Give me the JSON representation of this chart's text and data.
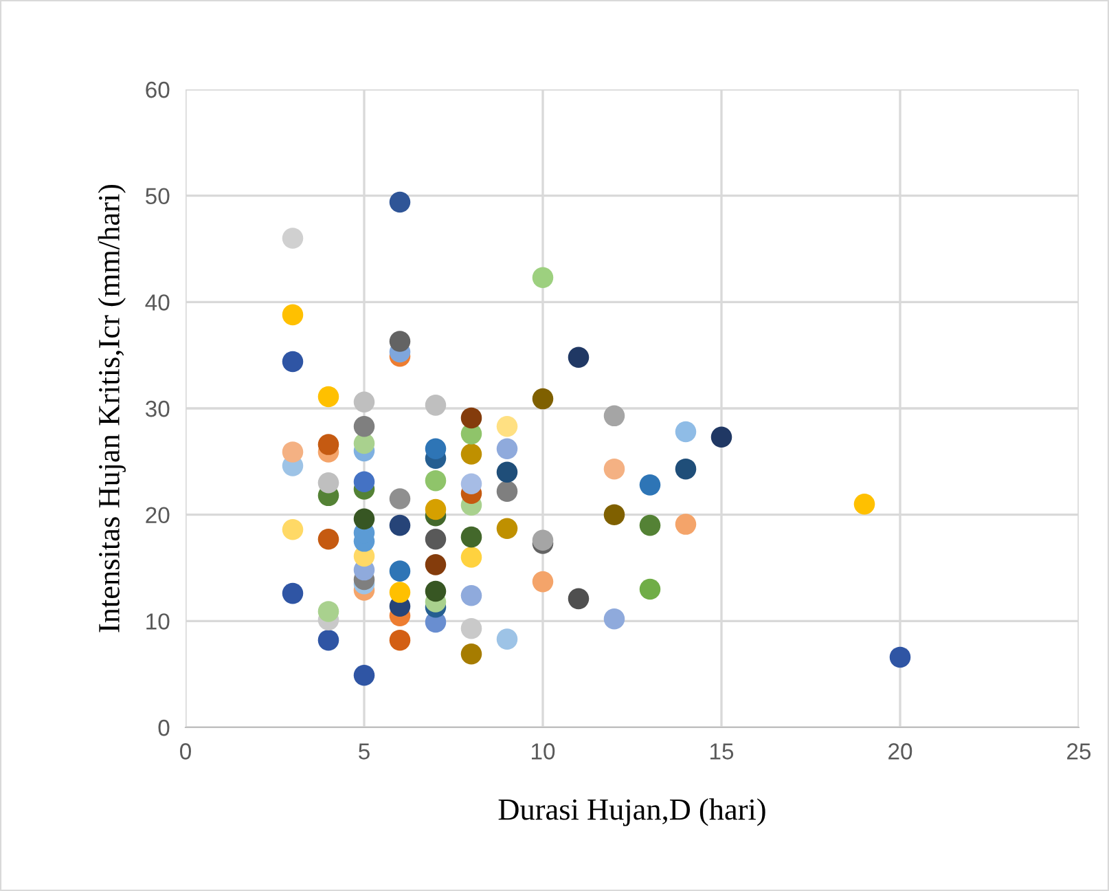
{
  "chart_data": {
    "type": "scatter",
    "xlabel": "Durasi Hujan,D (hari)",
    "ylabel": "Intensitas Hujan Kritis,Icr (mm/hari)",
    "xlim": [
      0,
      25
    ],
    "xticks": [
      0,
      5,
      10,
      15,
      20,
      25
    ],
    "ylim": [
      0,
      60
    ],
    "yticks": [
      0,
      10,
      20,
      30,
      40,
      50,
      60
    ],
    "grid": true,
    "marker": "circle",
    "legend": false,
    "series": [
      {
        "x": [
          3,
          3,
          3,
          3,
          3,
          3,
          3,
          4,
          4,
          4,
          4,
          4,
          4,
          4,
          4,
          4,
          5,
          5,
          5,
          5,
          5,
          5,
          5,
          5,
          5,
          5,
          5,
          5,
          5,
          5,
          5,
          6,
          6,
          6,
          6,
          6,
          6,
          6,
          6,
          6,
          6,
          6,
          7,
          7,
          7,
          7,
          7,
          7,
          7,
          7,
          7,
          7,
          7,
          7,
          8,
          8,
          8,
          8,
          8,
          8,
          8,
          8,
          8,
          8,
          8,
          9,
          9,
          9,
          9,
          9,
          9,
          10,
          10,
          10,
          10,
          10,
          11,
          11,
          12,
          12,
          12,
          12,
          13,
          13,
          13,
          14,
          14,
          14,
          15,
          19,
          20
        ],
        "values": [
          46.0,
          38.8,
          34.4,
          25.9,
          24.6,
          18.6,
          12.6,
          31.1,
          26.6,
          25.9,
          23.0,
          21.8,
          17.7,
          10.9,
          10.1,
          8.2,
          30.6,
          28.3,
          26.7,
          26.0,
          23.1,
          22.4,
          19.6,
          18.3,
          17.5,
          16.1,
          14.8,
          13.9,
          13.5,
          12.9,
          4.9,
          49.4,
          36.3,
          35.3,
          34.9,
          21.5,
          19.0,
          14.7,
          12.7,
          11.4,
          10.5,
          8.2,
          30.3,
          26.2,
          25.3,
          23.2,
          20.5,
          19.9,
          17.7,
          15.3,
          12.8,
          11.8,
          11.3,
          9.9,
          29.1,
          27.6,
          25.7,
          22.9,
          22.0,
          20.9,
          17.9,
          16.0,
          12.4,
          9.3,
          6.9,
          28.3,
          26.2,
          24.0,
          22.2,
          18.7,
          8.3,
          42.3,
          30.9,
          17.6,
          17.3,
          13.7,
          34.8,
          12.1,
          29.3,
          24.3,
          20.0,
          10.2,
          22.8,
          19.0,
          13.0,
          27.8,
          24.3,
          19.1,
          27.3,
          21.0,
          6.6
        ],
        "colors": [
          "#d0d0d0",
          "#ffc000",
          "#2f55a4",
          "#f4b183",
          "#9dc3e6",
          "#ffd966",
          "#2f55a4",
          "#ffc000",
          "#c55a11",
          "#f4a46a",
          "#bfbfbf",
          "#548235",
          "#c55a11",
          "#a9d18e",
          "#c9c9c9",
          "#2f55a4",
          "#bfbfbf",
          "#7f7f7f",
          "#a9d18e",
          "#7fb0e0",
          "#4472c4",
          "#548235",
          "#375623",
          "#5b9bd5",
          "#5b9bd5",
          "#ffd966",
          "#8faadc",
          "#7f7f7f",
          "#9dc3e6",
          "#f4a46a",
          "#2f55a4",
          "#2f5597",
          "#636363",
          "#7fa6dc",
          "#ed7d31",
          "#8f8f8f",
          "#264478",
          "#2e75b6",
          "#ffc000",
          "#264478",
          "#ed7d31",
          "#d35f14",
          "#bfbfbf",
          "#2e75b6",
          "#255e91",
          "#8fc46a",
          "#d6a000",
          "#43682b",
          "#595959",
          "#843c0c",
          "#375623",
          "#a9d18e",
          "#255e91",
          "#698ed0",
          "#843c0c",
          "#8fc46a",
          "#bf9000",
          "#a6bce5",
          "#c55a11",
          "#a9d18e",
          "#43682b",
          "#ffd23f",
          "#8faadc",
          "#c9c9c9",
          "#a67c00",
          "#ffe082",
          "#8faadc",
          "#1f4e79",
          "#7f7f7f",
          "#bf9000",
          "#9dc3e6",
          "#9dd07f",
          "#7f6000",
          "#a5a5a5",
          "#636363",
          "#f4a46a",
          "#203864",
          "#4f4f4f",
          "#a5a5a5",
          "#f4b183",
          "#7f6000",
          "#8faadc",
          "#2e75b6",
          "#548235",
          "#70ad47",
          "#8fbce6",
          "#1f4e79",
          "#f4a46a",
          "#203864",
          "#ffc000",
          "#2f55a4"
        ]
      }
    ]
  }
}
